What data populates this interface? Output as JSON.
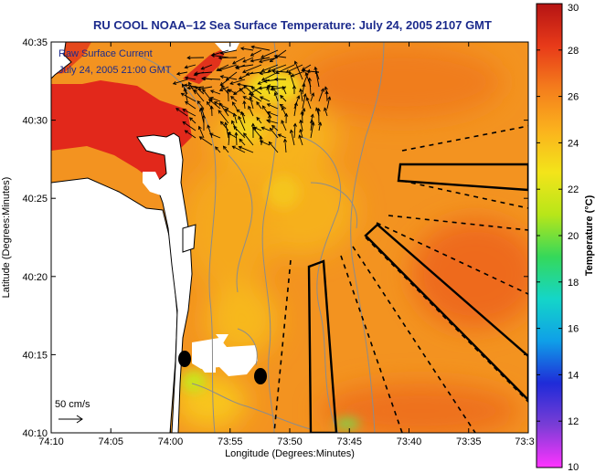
{
  "title": "RU COOL  NOAA–12  Sea Surface Temperature:  July 24, 2005 2107 GMT",
  "current_note": {
    "line1": "Raw Surface Current",
    "line2": "July 24, 2005 21:00 GMT"
  },
  "scale_label": "50 cm/s",
  "x_axis_label": "Longitude (Degrees:Minutes)",
  "y_axis_label": "Latitude (Degrees:Minutes)",
  "x_ticks": [
    "74:10",
    "74:05",
    "74:00",
    "73:55",
    "73:50",
    "73:45",
    "73:40",
    "73:35",
    "73:3"
  ],
  "y_ticks": [
    "40:35",
    "40:30",
    "40:25",
    "40:20",
    "40:15",
    "40:10"
  ],
  "colorbar": {
    "label": "Temperature (°C)",
    "ticks": [
      "30",
      "28",
      "26",
      "24",
      "22",
      "20",
      "18",
      "16",
      "14",
      "12",
      "10"
    ],
    "min": 10,
    "max": 30,
    "colors": [
      "#ff33ff",
      "#7a3dd6",
      "#1f2bd8",
      "#0f9fe8",
      "#14d6c8",
      "#35d85a",
      "#b8e619",
      "#f3e41a",
      "#fbb21d",
      "#f47d1c",
      "#e83a19",
      "#b51414"
    ]
  },
  "palette": {
    "land": "#ffffff",
    "sst_orange": "#f6931f",
    "sst_warm": "#ec6a1a",
    "sst_hot": "#e3231b",
    "sst_yellow": "#f3d41c",
    "frame": "#000000"
  }
}
